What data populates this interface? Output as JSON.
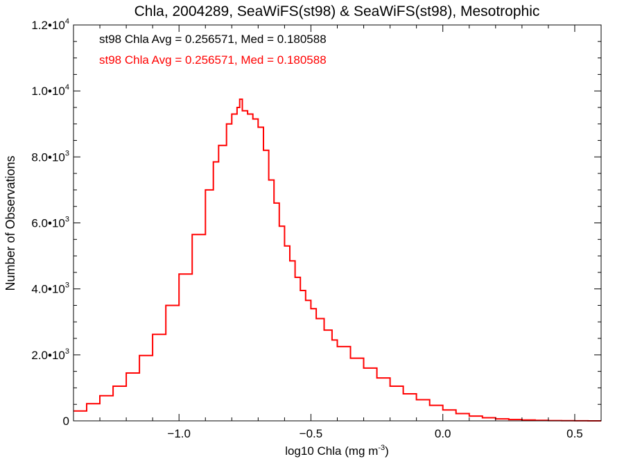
{
  "chart_data": {
    "type": "line",
    "title": "Chla, 2004289, SeaWiFS(st98) & SeaWiFS(st98), Mesotrophic",
    "xlabel": "log10 Chla (mg m",
    "xlabel_sup": "-3",
    "xlabel_end": ")",
    "ylabel": "Number of Observations",
    "xlim": [
      -1.4,
      0.6
    ],
    "ylim": [
      0,
      12000
    ],
    "x_ticks": [
      -1.0,
      -0.5,
      0.0,
      0.5
    ],
    "x_tick_labels": [
      "−1.0",
      "−0.5",
      "0.0",
      "0.5"
    ],
    "y_ticks": [
      0,
      2000,
      4000,
      6000,
      8000,
      10000,
      12000
    ],
    "y_tick_labels": [
      {
        "mant": "0",
        "exp": ""
      },
      {
        "mant": "2.0•10",
        "exp": "3"
      },
      {
        "mant": "4.0•10",
        "exp": "3"
      },
      {
        "mant": "6.0•10",
        "exp": "3"
      },
      {
        "mant": "8.0•10",
        "exp": "3"
      },
      {
        "mant": "1.0•10",
        "exp": "4"
      },
      {
        "mant": "1.2•10",
        "exp": "4"
      }
    ],
    "annotations": [
      {
        "text": "st98 Chla Avg = 0.256571, Med = 0.180588",
        "color": "#000000"
      },
      {
        "text": "st98 Chla Avg = 0.256571, Med = 0.180588",
        "color": "#ff0000"
      }
    ],
    "series": [
      {
        "color": "#ff0000",
        "x": [
          -1.4,
          -1.35,
          -1.3,
          -1.25,
          -1.2,
          -1.15,
          -1.1,
          -1.05,
          -1.0,
          -0.95,
          -0.9,
          -0.87,
          -0.85,
          -0.82,
          -0.8,
          -0.78,
          -0.77,
          -0.76,
          -0.74,
          -0.72,
          -0.7,
          -0.68,
          -0.66,
          -0.64,
          -0.62,
          -0.6,
          -0.58,
          -0.56,
          -0.54,
          -0.52,
          -0.5,
          -0.48,
          -0.45,
          -0.42,
          -0.4,
          -0.35,
          -0.3,
          -0.25,
          -0.2,
          -0.15,
          -0.1,
          -0.05,
          0.0,
          0.05,
          0.1,
          0.15,
          0.2,
          0.25,
          0.3,
          0.35,
          0.4,
          0.45,
          0.5,
          0.55,
          0.6
        ],
        "y": [
          300,
          520,
          760,
          1050,
          1450,
          1980,
          2620,
          3500,
          4450,
          5650,
          7000,
          7850,
          8350,
          9000,
          9300,
          9500,
          9750,
          9400,
          9300,
          9150,
          8900,
          8200,
          7300,
          6600,
          5900,
          5300,
          4850,
          4350,
          3950,
          3650,
          3400,
          3100,
          2750,
          2450,
          2250,
          1900,
          1600,
          1300,
          1050,
          820,
          640,
          470,
          330,
          220,
          145,
          95,
          60,
          40,
          25,
          15,
          8,
          4,
          2,
          1,
          0
        ]
      }
    ]
  }
}
